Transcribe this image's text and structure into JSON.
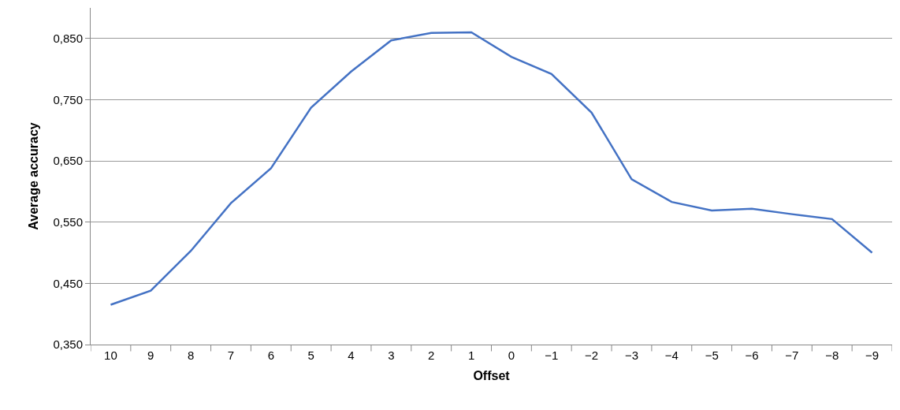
{
  "chart_data": {
    "type": "line",
    "xlabel": "Offset",
    "ylabel": "Average accuracy",
    "categories": [
      "10",
      "9",
      "8",
      "7",
      "6",
      "5",
      "4",
      "3",
      "2",
      "1",
      "0",
      "−1",
      "−2",
      "−3",
      "−4",
      "−5",
      "−6",
      "−7",
      "−8",
      "−9"
    ],
    "series": [
      {
        "color": "#4472c4",
        "values": [
          0.415,
          0.438,
          0.503,
          0.581,
          0.638,
          0.737,
          0.796,
          0.847,
          0.859,
          0.86,
          0.82,
          0.792,
          0.729,
          0.62,
          0.583,
          0.569,
          0.572,
          0.563,
          0.555,
          0.5
        ]
      }
    ],
    "ylim": [
      0.35,
      0.9
    ],
    "yticks": [
      {
        "value": 0.35,
        "label": "0,350"
      },
      {
        "value": 0.45,
        "label": "0,450"
      },
      {
        "value": 0.55,
        "label": "0,550"
      },
      {
        "value": 0.65,
        "label": "0,650"
      },
      {
        "value": 0.75,
        "label": "0,750"
      },
      {
        "value": 0.85,
        "label": "0,850"
      }
    ],
    "grid": "y",
    "marker": "none",
    "line_style": "solid"
  }
}
